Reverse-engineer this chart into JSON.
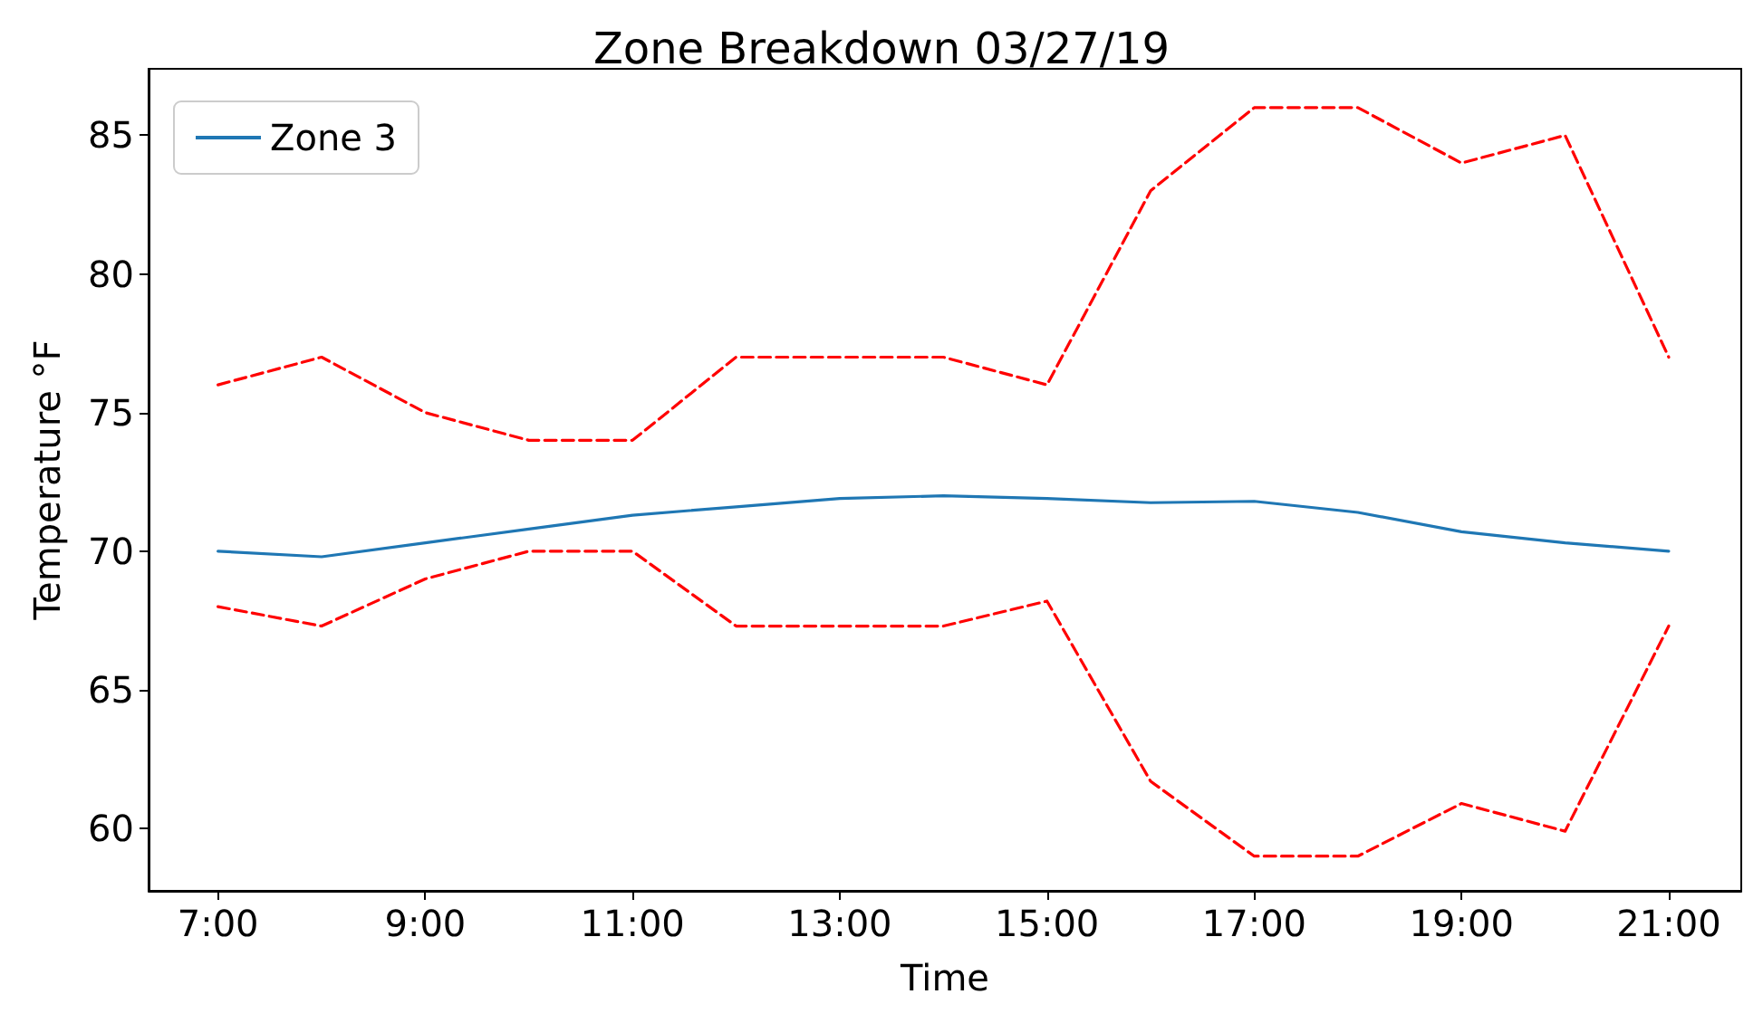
{
  "chart_data": {
    "type": "line",
    "title": "Zone Breakdown 03/27/19",
    "xlabel": "Time",
    "ylabel": "Temperature °F",
    "x": [
      7,
      8,
      9,
      10,
      11,
      12,
      13,
      14,
      15,
      16,
      17,
      18,
      19,
      20,
      21
    ],
    "series": [
      {
        "name": "Zone 3",
        "color": "#1f77b4",
        "line_style": "solid",
        "values": [
          70.0,
          69.8,
          70.3,
          70.8,
          71.3,
          71.6,
          71.9,
          72.0,
          71.9,
          71.75,
          71.8,
          71.4,
          70.7,
          70.3,
          70.0
        ]
      },
      {
        "color": "#ff0000",
        "line_style": "dashed",
        "values": [
          76,
          77,
          75,
          74,
          74,
          77,
          77,
          77,
          76,
          83,
          86,
          86,
          84,
          85,
          77
        ]
      },
      {
        "color": "#ff0000",
        "line_style": "dashed",
        "values": [
          68,
          67.3,
          69,
          70,
          70,
          67.3,
          67.3,
          67.3,
          68.2,
          61.7,
          59,
          59,
          60.9,
          59.9,
          67.3
        ]
      }
    ],
    "xlim": [
      6.33,
      21.7
    ],
    "xticks": [
      {
        "value": 7,
        "label": "7:00"
      },
      {
        "value": 9,
        "label": "9:00"
      },
      {
        "value": 11,
        "label": "11:00"
      },
      {
        "value": 13,
        "label": "13:00"
      },
      {
        "value": 15,
        "label": "15:00"
      },
      {
        "value": 17,
        "label": "17:00"
      },
      {
        "value": 19,
        "label": "19:00"
      },
      {
        "value": 21,
        "label": "21:00"
      }
    ],
    "ylim": [
      57.75,
      87.4
    ],
    "yticks": [
      60,
      65,
      70,
      75,
      80,
      85
    ],
    "grid": false,
    "legend": "top left",
    "marker": "none"
  }
}
